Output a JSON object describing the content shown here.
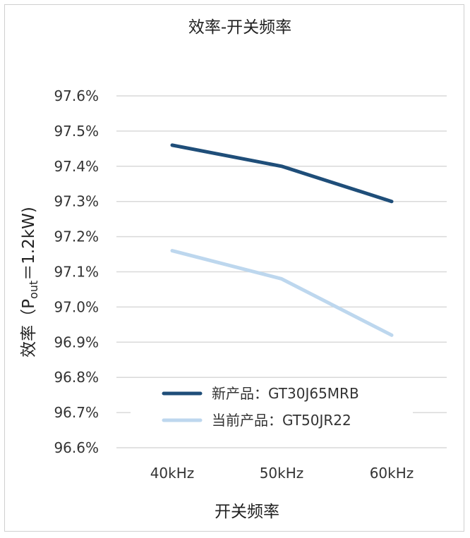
{
  "chart_data": {
    "type": "line",
    "title": "效率-开关频率",
    "xlabel": "开关频率",
    "ylabel": "效率（Pout＝1.2kW)",
    "ylabel_parts": {
      "pre": "效率（P",
      "sub": "out",
      "post": "＝1.2kW)"
    },
    "categories": [
      "40kHz",
      "50kHz",
      "60kHz"
    ],
    "ylim": [
      96.6,
      97.6
    ],
    "yticks": [
      {
        "value": 96.6,
        "label": "96.6%"
      },
      {
        "value": 96.7,
        "label": "96.7%"
      },
      {
        "value": 96.8,
        "label": "96.8%"
      },
      {
        "value": 96.9,
        "label": "96.9%"
      },
      {
        "value": 97.0,
        "label": "97.0%"
      },
      {
        "value": 97.1,
        "label": "97.1%"
      },
      {
        "value": 97.2,
        "label": "97.2%"
      },
      {
        "value": 97.3,
        "label": "97.3%"
      },
      {
        "value": 97.4,
        "label": "97.4%"
      },
      {
        "value": 97.5,
        "label": "97.5%"
      },
      {
        "value": 97.6,
        "label": "97.6%"
      }
    ],
    "grid": true,
    "legend_position": "bottom-center",
    "series": [
      {
        "name": "新产品：GT30J65MRB",
        "values": [
          97.46,
          97.4,
          97.3
        ],
        "color": "#1f4e79"
      },
      {
        "name": "当前产品：GT50JR22",
        "values": [
          97.16,
          97.08,
          96.92
        ],
        "color": "#bdd7ee"
      }
    ]
  }
}
